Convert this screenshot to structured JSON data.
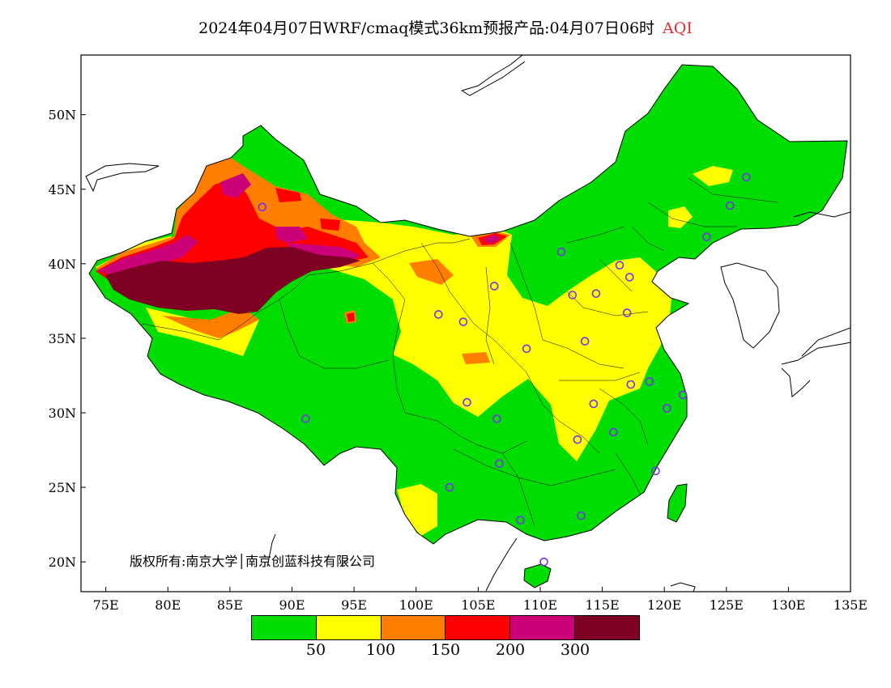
{
  "title": {
    "text": "2024年04月07日WRF/cmaq模式36km预报产品:04月07日06时",
    "variable": "AQI"
  },
  "copyright": "版权所有:南京大学│南京创蓝科技有限公司",
  "axes": {
    "lon_ticks": [
      75,
      80,
      85,
      90,
      95,
      100,
      105,
      110,
      115,
      120,
      125,
      130,
      135
    ],
    "lon_labels": [
      "75E",
      "80E",
      "85E",
      "90E",
      "95E",
      "100E",
      "105E",
      "110E",
      "115E",
      "120E",
      "125E",
      "130E",
      "135E"
    ],
    "lat_ticks": [
      20,
      25,
      30,
      35,
      40,
      45,
      50
    ],
    "lat_labels": [
      "20N",
      "25N",
      "30N",
      "35N",
      "40N",
      "45N",
      "50N"
    ],
    "lon_range": [
      73,
      135
    ],
    "lat_range": [
      18,
      54
    ]
  },
  "legend": {
    "colors": [
      "#00dd00",
      "#ffff00",
      "#ff7e00",
      "#ff0000",
      "#cc0077",
      "#7e0023"
    ],
    "labels": [
      "50",
      "100",
      "150",
      "200",
      "300"
    ]
  },
  "colors": {
    "good": "#00dd00",
    "moderate": "#ffff00",
    "unhealthy_sensitive": "#ff7e00",
    "unhealthy": "#ff0000",
    "very_unhealthy": "#cc0077",
    "hazardous": "#7e0023",
    "station_marker": "#7733ee"
  },
  "map_data": {
    "stations": [
      [
        87.6,
        43.8
      ],
      [
        91.1,
        29.6
      ],
      [
        101.8,
        36.6
      ],
      [
        103.8,
        36.1
      ],
      [
        104.1,
        30.7
      ],
      [
        106.5,
        29.6
      ],
      [
        106.7,
        26.6
      ],
      [
        102.7,
        25.0
      ],
      [
        108.4,
        22.8
      ],
      [
        110.3,
        20.0
      ],
      [
        113.3,
        23.1
      ],
      [
        106.3,
        38.5
      ],
      [
        108.9,
        34.3
      ],
      [
        111.7,
        40.8
      ],
      [
        112.6,
        37.9
      ],
      [
        114.5,
        38.0
      ],
      [
        116.4,
        39.9
      ],
      [
        117.2,
        39.1
      ],
      [
        117.0,
        36.7
      ],
      [
        113.6,
        34.8
      ],
      [
        114.3,
        30.6
      ],
      [
        113.0,
        28.2
      ],
      [
        115.9,
        28.7
      ],
      [
        117.3,
        31.9
      ],
      [
        118.8,
        32.1
      ],
      [
        120.2,
        30.3
      ],
      [
        121.5,
        31.2
      ],
      [
        119.3,
        26.1
      ],
      [
        123.4,
        41.8
      ],
      [
        125.3,
        43.9
      ],
      [
        126.6,
        45.8
      ]
    ]
  }
}
